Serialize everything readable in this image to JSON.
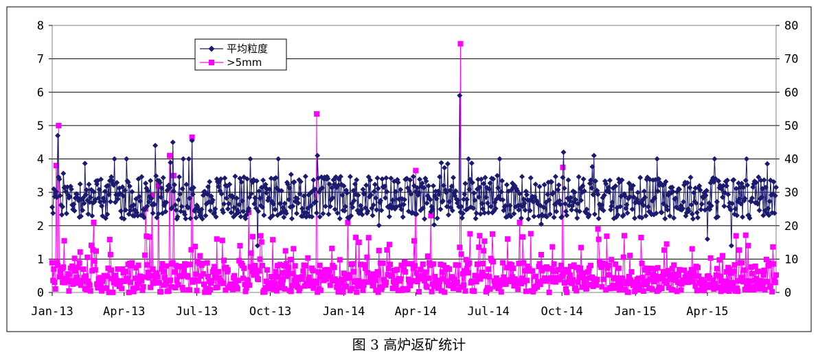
{
  "caption": "图 3   高炉返矿统计",
  "chart_data": {
    "type": "line",
    "title": "",
    "x_axis": {
      "min": "2013-01-01",
      "max": "2015-06-26",
      "tick_dates": [
        "2013-01-01",
        "2013-04-01",
        "2013-07-01",
        "2013-10-01",
        "2014-01-01",
        "2014-04-01",
        "2014-07-01",
        "2014-10-01",
        "2015-01-01",
        "2015-04-01"
      ],
      "tick_labels": [
        "Jan-13",
        "Apr-13",
        "Jul-13",
        "Oct-13",
        "Jan-14",
        "Apr-14",
        "Jul-14",
        "Oct-14",
        "Jan-15",
        "Apr-15"
      ]
    },
    "y_left": {
      "min": 0,
      "max": 8,
      "step": 1,
      "ticks": [
        "0",
        "1",
        "2",
        "3",
        "4",
        "5",
        "6",
        "7",
        "8"
      ]
    },
    "y_right": {
      "min": 0,
      "max": 80,
      "step": 10,
      "ticks": [
        "0",
        "10",
        "20",
        "30",
        "40",
        "50",
        "60",
        "70",
        "80"
      ]
    },
    "grid": "horizontal",
    "legend_position": "top-left",
    "series": [
      {
        "name": "平均粒度",
        "axis": "left",
        "color": "#1a1a6e",
        "marker": "diamond",
        "typical_range": [
          2.0,
          3.6
        ],
        "notable_points": [
          {
            "x": "2013-01-03",
            "y": 3.1
          },
          {
            "x": "2013-01-08",
            "y": 4.7
          },
          {
            "x": "2013-05-10",
            "y": 4.4
          },
          {
            "x": "2013-06-01",
            "y": 4.5
          },
          {
            "x": "2013-06-25",
            "y": 4.55
          },
          {
            "x": "2013-09-15",
            "y": 1.4
          },
          {
            "x": "2013-11-29",
            "y": 4.1
          },
          {
            "x": "2014-05-26",
            "y": 5.9
          },
          {
            "x": "2014-10-03",
            "y": 4.2
          },
          {
            "x": "2014-11-10",
            "y": 4.1
          },
          {
            "x": "2015-04-01",
            "y": 1.6
          },
          {
            "x": "2015-04-10",
            "y": 4.0
          },
          {
            "x": "2015-05-01",
            "y": 1.4
          },
          {
            "x": "2015-06-25",
            "y": 2.9
          }
        ]
      },
      {
        "name": ">5mm",
        "axis": "right",
        "color": "#ff00ff",
        "marker": "square",
        "typical_range": [
          0,
          10
        ],
        "notable_points": [
          {
            "x": "2013-01-03",
            "y": 7
          },
          {
            "x": "2013-01-06",
            "y": 38
          },
          {
            "x": "2013-01-09",
            "y": 50
          },
          {
            "x": "2013-02-22",
            "y": 21
          },
          {
            "x": "2013-04-28",
            "y": 25
          },
          {
            "x": "2013-05-06",
            "y": 29
          },
          {
            "x": "2013-05-14",
            "y": 32
          },
          {
            "x": "2013-05-28",
            "y": 41
          },
          {
            "x": "2013-06-02",
            "y": 35
          },
          {
            "x": "2013-06-25",
            "y": 46.5
          },
          {
            "x": "2013-08-24",
            "y": 14
          },
          {
            "x": "2013-09-04",
            "y": 24
          },
          {
            "x": "2013-11-28",
            "y": 53.5
          },
          {
            "x": "2014-01-06",
            "y": 21
          },
          {
            "x": "2014-04-01",
            "y": 36.5
          },
          {
            "x": "2014-04-20",
            "y": 23
          },
          {
            "x": "2014-05-27",
            "y": 74.5
          },
          {
            "x": "2014-07-25",
            "y": 16
          },
          {
            "x": "2014-08-09",
            "y": 21
          },
          {
            "x": "2014-10-02",
            "y": 37.5
          },
          {
            "x": "2014-11-15",
            "y": 19
          },
          {
            "x": "2014-12-18",
            "y": 17
          },
          {
            "x": "2015-04-20",
            "y": 11
          },
          {
            "x": "2015-06-25",
            "y": 3
          }
        ]
      }
    ]
  }
}
